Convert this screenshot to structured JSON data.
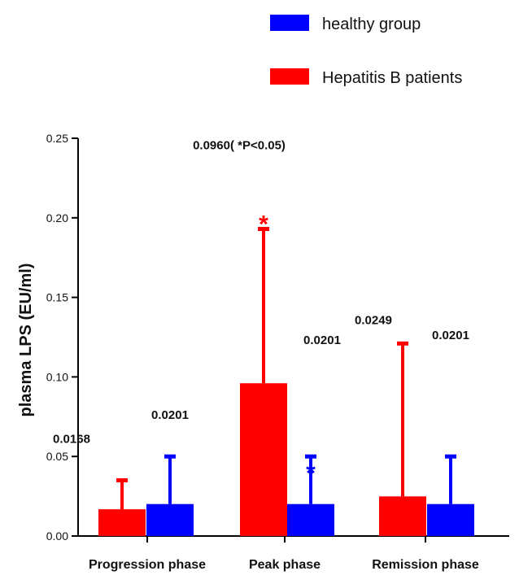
{
  "chart_data": {
    "type": "bar",
    "ylabel": "plasma LPS (EU/ml)",
    "ylim": [
      0,
      0.25
    ],
    "yticks": [
      "0.00",
      "0.05",
      "0.10",
      "0.15",
      "0.20",
      "0.25"
    ],
    "categories": [
      "Progression phase",
      "Peak phase",
      "Remission phase"
    ],
    "legend_position": "top-right",
    "series": [
      {
        "name": "Hepatitis B patients",
        "color": "#ff0000",
        "values": [
          0.0168,
          0.096,
          0.0249
        ],
        "error_upper": [
          0.035,
          0.193,
          0.121
        ],
        "value_labels": [
          "0.0168",
          "0.0960( *P<0.05)",
          "0.0249"
        ],
        "significance": [
          "",
          "*",
          ""
        ]
      },
      {
        "name": "healthy group",
        "color": "#0000ff",
        "values": [
          0.0201,
          0.0201,
          0.0201
        ],
        "error_upper": [
          0.05,
          0.05,
          0.05
        ],
        "value_labels": [
          "0.0201",
          "0.0201",
          "0.0201"
        ],
        "significance": [
          "",
          "*",
          ""
        ]
      }
    ]
  }
}
